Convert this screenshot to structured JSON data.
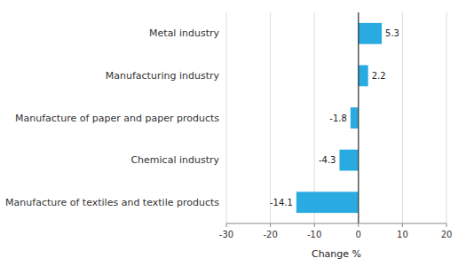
{
  "chart_data": {
    "type": "bar",
    "orientation": "horizontal",
    "categories": [
      "Manufacture of textiles and textile products",
      "Chemical industry",
      "Manufacture of paper and paper products",
      "Manufacturing industry",
      "Metal industry"
    ],
    "values": [
      -14.1,
      -4.3,
      -1.8,
      2.2,
      5.3
    ],
    "color": "#29ABE2",
    "xlim": [
      -30,
      20
    ],
    "xticks": [
      -30,
      -20,
      -10,
      0,
      10,
      20
    ],
    "xlabel": "Change %",
    "grid": true,
    "data_labels": true
  }
}
